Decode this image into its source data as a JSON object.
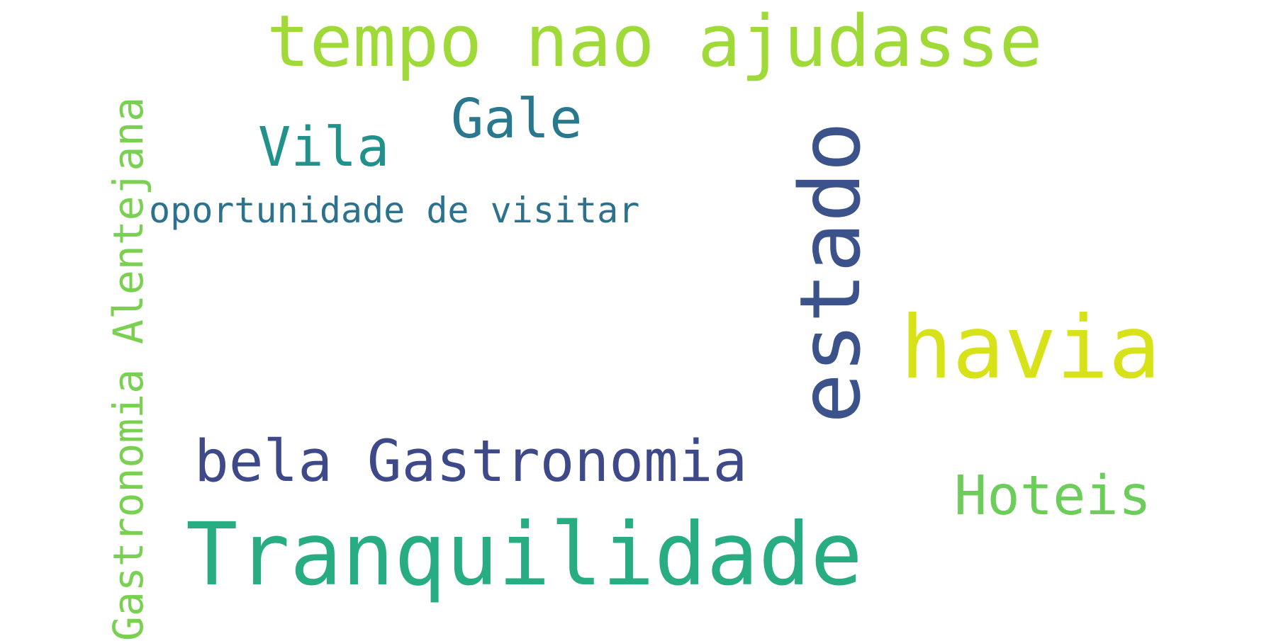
{
  "wordcloud": {
    "words": [
      {
        "id": "tempo",
        "text": "tempo nao ajudasse",
        "color": "#a0da39",
        "orientation": "horizontal"
      },
      {
        "id": "gale",
        "text": "Gale",
        "color": "#2a788e",
        "orientation": "horizontal"
      },
      {
        "id": "vila",
        "text": "Vila",
        "color": "#21918c",
        "orientation": "horizontal"
      },
      {
        "id": "oportunidade",
        "text": "oportunidade de visitar",
        "color": "#2c728e",
        "orientation": "horizontal"
      },
      {
        "id": "estado",
        "text": "estado",
        "color": "#3b528b",
        "orientation": "vertical"
      },
      {
        "id": "havia",
        "text": "havia",
        "color": "#d8e219",
        "orientation": "horizontal"
      },
      {
        "id": "bela",
        "text": "bela Gastronomia",
        "color": "#3e4989",
        "orientation": "horizontal"
      },
      {
        "id": "hoteis",
        "text": "Hoteis",
        "color": "#6ccd5a",
        "orientation": "horizontal"
      },
      {
        "id": "tranquilidade",
        "text": "Tranquilidade",
        "color": "#27ad81",
        "orientation": "horizontal"
      },
      {
        "id": "alentejana",
        "text": "Gastronomia Alentejana",
        "color": "#7ad151",
        "orientation": "vertical"
      }
    ]
  }
}
